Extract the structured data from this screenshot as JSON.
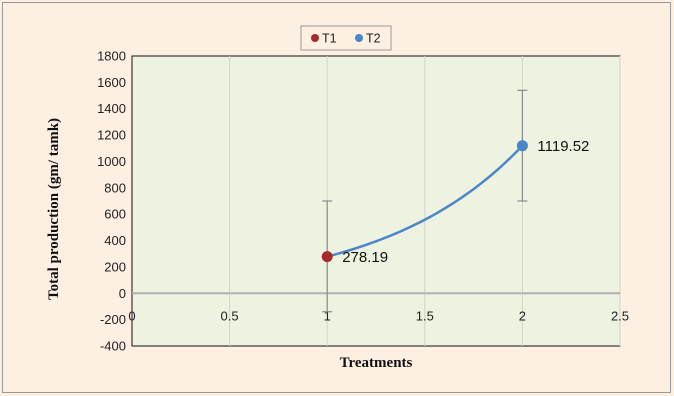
{
  "chart_data": {
    "type": "scatter",
    "title": "",
    "xlabel": "Treatments",
    "ylabel": "Total production (gm/ tamk)",
    "xlim": [
      0,
      2.5
    ],
    "ylim": [
      -400,
      1800
    ],
    "x_ticks": [
      "0",
      "0.5",
      "1",
      "1.5",
      "2",
      "2.5"
    ],
    "y_ticks": [
      "1800",
      "1600",
      "1400",
      "1200",
      "1000",
      "800",
      "600",
      "400",
      "200",
      "0",
      "-200",
      "-400"
    ],
    "x_tick_values": [
      0,
      0.5,
      1,
      1.5,
      2,
      2.5
    ],
    "y_tick_values": [
      1800,
      1600,
      1400,
      1200,
      1000,
      800,
      600,
      400,
      200,
      0,
      -200,
      -400
    ],
    "grid": "vertical",
    "legend_position": "top",
    "series": [
      {
        "name": "T1",
        "x": 1,
        "y": 278.19,
        "label": "278.19",
        "error_low": -140,
        "error_high": 700,
        "color": "#a52a2a"
      },
      {
        "name": "T2",
        "x": 2,
        "y": 1119.52,
        "label": "1119.52",
        "error_low": 700,
        "error_high": 1540,
        "color": "#4a86c8"
      }
    ],
    "trendline": {
      "type": "exponential",
      "color": "#4a86c8"
    },
    "colors": {
      "plot_background": "#eef3e1",
      "chart_background": "#fdf0e3",
      "gridline": "#cfd6c4"
    }
  }
}
